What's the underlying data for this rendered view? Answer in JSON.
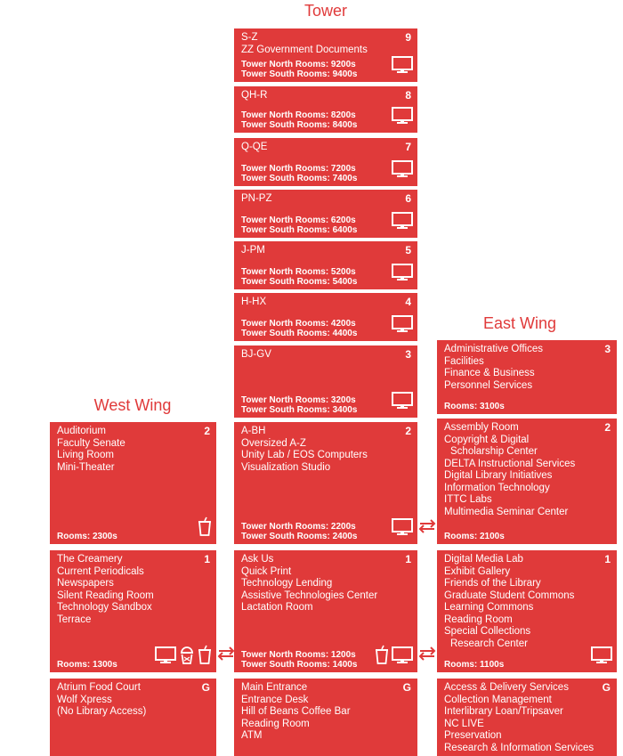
{
  "colors": {
    "accent": "#e03a3a",
    "background": "#ffffff"
  },
  "headings": {
    "tower": "Tower",
    "east": "East Wing",
    "west": "West Wing"
  },
  "tower": [
    {
      "floor": "9",
      "lines": [
        "S-Z",
        "ZZ Government Documents"
      ],
      "rooms": [
        "Tower North Rooms: 9200s",
        "Tower South Rooms: 9400s"
      ],
      "icons": [
        "monitor-icon"
      ]
    },
    {
      "floor": "8",
      "lines": [
        "QH-R"
      ],
      "rooms": [
        "Tower North Rooms: 8200s",
        "Tower South Rooms: 8400s"
      ],
      "icons": [
        "monitor-icon"
      ]
    },
    {
      "floor": "7",
      "lines": [
        "Q-QE"
      ],
      "rooms": [
        "Tower North Rooms: 7200s",
        "Tower South Rooms: 7400s"
      ],
      "icons": [
        "monitor-icon"
      ]
    },
    {
      "floor": "6",
      "lines": [
        "PN-PZ"
      ],
      "rooms": [
        "Tower North Rooms: 6200s",
        "Tower South Rooms: 6400s"
      ],
      "icons": [
        "monitor-icon"
      ]
    },
    {
      "floor": "5",
      "lines": [
        "J-PM"
      ],
      "rooms": [
        "Tower North Rooms: 5200s",
        "Tower South Rooms: 5400s"
      ],
      "icons": [
        "monitor-icon"
      ]
    },
    {
      "floor": "4",
      "lines": [
        "H-HX"
      ],
      "rooms": [
        "Tower North Rooms: 4200s",
        "Tower South Rooms: 4400s"
      ],
      "icons": [
        "monitor-icon"
      ]
    },
    {
      "floor": "3",
      "lines": [
        "BJ-GV"
      ],
      "rooms": [
        "Tower North Rooms: 3200s",
        "Tower South Rooms: 3400s"
      ],
      "icons": [
        "monitor-icon"
      ]
    },
    {
      "floor": "2",
      "lines": [
        "A-BH",
        "Oversized A-Z",
        "Unity Lab / EOS Computers",
        "Visualization Studio"
      ],
      "rooms": [
        "Tower North Rooms: 2200s",
        "Tower South Rooms: 2400s"
      ],
      "icons": [
        "monitor-icon"
      ]
    },
    {
      "floor": "1",
      "lines": [
        "Ask Us",
        "Quick Print",
        "Technology Lending",
        "Assistive Technologies Center",
        "Lactation Room"
      ],
      "rooms": [
        "Tower North Rooms: 1200s",
        "Tower South Rooms: 1400s"
      ],
      "icons": [
        "cup-icon",
        "monitor-icon"
      ]
    },
    {
      "floor": "G",
      "lines": [
        "Main Entrance",
        "Entrance Desk",
        "Hill of Beans Coffee Bar",
        "Reading Room",
        "ATM"
      ],
      "rooms": [],
      "icons": []
    }
  ],
  "east": [
    {
      "floor": "3",
      "lines": [
        "Administrative Offices",
        "Facilities",
        "Finance & Business",
        "Personnel Services"
      ],
      "rooms": [
        "Rooms: 3100s"
      ],
      "icons": []
    },
    {
      "floor": "2",
      "lines": [
        "Assembly Room",
        "Copyright & Digital",
        " Scholarship Center",
        "DELTA Instructional Services",
        "Digital Library Initiatives",
        "Information Technology",
        "ITTC Labs",
        "Multimedia Seminar Center"
      ],
      "rooms": [
        "Rooms: 2100s"
      ],
      "icons": []
    },
    {
      "floor": "1",
      "lines": [
        "Digital Media Lab",
        "Exhibit Gallery",
        "Friends of the Library",
        "Graduate Student Commons",
        "Learning Commons",
        "Reading Room",
        "Special Collections",
        " Research Center"
      ],
      "rooms": [
        "Rooms: 1100s"
      ],
      "icons": [
        "monitor-icon"
      ]
    },
    {
      "floor": "G",
      "lines": [
        "Access & Delivery Services",
        "Collection Management",
        "Interlibrary Loan/Tripsaver",
        "NC LIVE",
        "Preservation",
        "Research & Information Services"
      ],
      "rooms": [],
      "icons": []
    }
  ],
  "west": [
    {
      "floor": "2",
      "lines": [
        "Auditorium",
        "Faculty Senate",
        "Living Room",
        "Mini-Theater"
      ],
      "rooms": [
        "Rooms: 2300s"
      ],
      "icons": [
        "cup-icon"
      ]
    },
    {
      "floor": "1",
      "lines": [
        "The Creamery",
        "Current Periodicals",
        "Newspapers",
        "Silent Reading Room",
        "Technology Sandbox",
        "Terrace"
      ],
      "rooms": [
        "Rooms: 1300s"
      ],
      "icons": [
        "monitor-icon",
        "icecream-icon",
        "cup-icon"
      ]
    },
    {
      "floor": "G",
      "lines": [
        "Atrium Food Court",
        "Wolf Xpress",
        "(No Library Access)"
      ],
      "rooms": [],
      "icons": []
    }
  ]
}
